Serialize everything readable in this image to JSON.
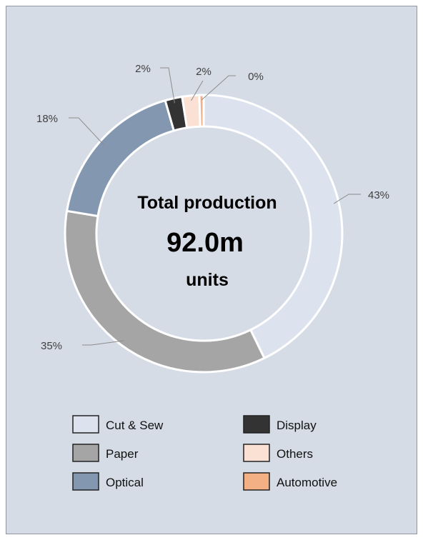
{
  "chart_data": {
    "type": "pie",
    "variant": "donut",
    "categories": [
      "Cut & Sew",
      "Paper",
      "Optical",
      "Display",
      "Others",
      "Automotive"
    ],
    "values": [
      43,
      35,
      18,
      2,
      2,
      0
    ],
    "labels": [
      "43%",
      "35%",
      "18%",
      "2%",
      "2%",
      "0%"
    ],
    "colors": [
      "#dde3ee",
      "#a5a5a5",
      "#8497b0",
      "#333333",
      "#fbe1d3",
      "#f3b084"
    ],
    "center": {
      "title": "Total production",
      "value": "92.0m",
      "unit": "units"
    },
    "legend": {
      "placement": "bottom",
      "columns": 2
    }
  }
}
